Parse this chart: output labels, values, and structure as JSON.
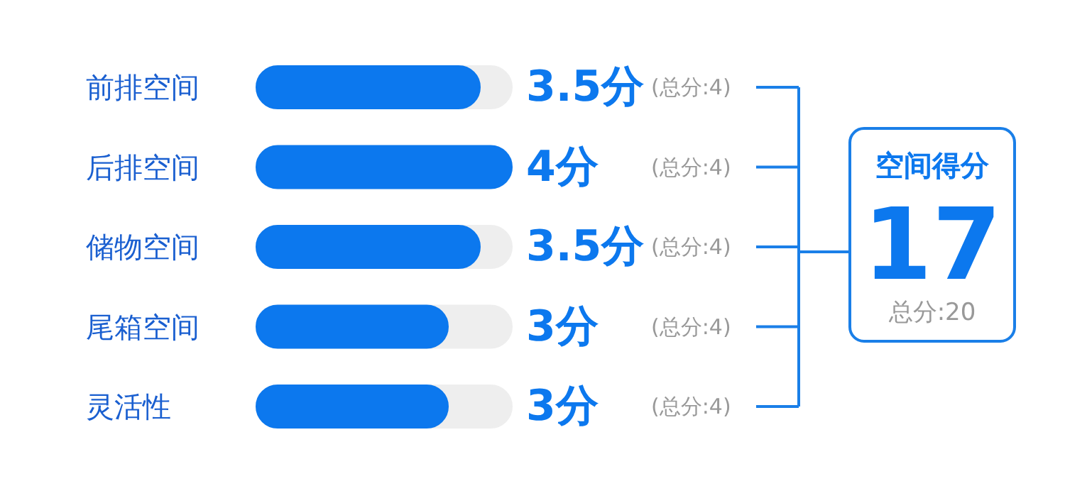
{
  "chart_data": {
    "type": "bar",
    "orientation": "horizontal",
    "categories": [
      "前排空间",
      "后排空间",
      "储物空间",
      "尾箱空间",
      "灵活性"
    ],
    "values": [
      3.5,
      4,
      3.5,
      3,
      3
    ],
    "color": "#0c78ee",
    "xlim": [
      0,
      4
    ],
    "tick_labels": "y",
    "grid": false,
    "value_labels": [
      "3.5分",
      "4分",
      "3.5分",
      "3分",
      "3分"
    ],
    "annotations": [
      "(总分:4)",
      "(总分:4)",
      "(总分:4)",
      "(总分:4)",
      "(总分:4)",
      "空间得分",
      "17",
      "总分:20"
    ]
  }
}
